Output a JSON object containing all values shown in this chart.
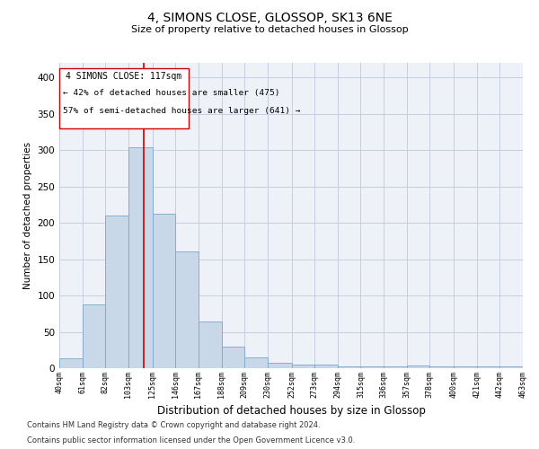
{
  "title": "4, SIMONS CLOSE, GLOSSOP, SK13 6NE",
  "subtitle": "Size of property relative to detached houses in Glossop",
  "xlabel": "Distribution of detached houses by size in Glossop",
  "ylabel": "Number of detached properties",
  "bar_color": "#c8d8e8",
  "bar_edge_color": "#7aa8c8",
  "grid_color": "#c8cce0",
  "background_color": "#eef2f8",
  "property_line_color": "#cc0000",
  "property_size": 117,
  "annotation_text_line1": "4 SIMONS CLOSE: 117sqm",
  "annotation_text_line2": "← 42% of detached houses are smaller (475)",
  "annotation_text_line3": "57% of semi-detached houses are larger (641) →",
  "footer_line1": "Contains HM Land Registry data © Crown copyright and database right 2024.",
  "footer_line2": "Contains public sector information licensed under the Open Government Licence v3.0.",
  "bins": [
    40,
    61,
    82,
    103,
    125,
    146,
    167,
    188,
    209,
    230,
    252,
    273,
    294,
    315,
    336,
    357,
    378,
    400,
    421,
    442,
    463
  ],
  "counts": [
    14,
    88,
    210,
    304,
    212,
    160,
    64,
    30,
    15,
    8,
    5,
    5,
    2,
    2,
    2,
    4,
    2,
    3,
    3,
    2
  ],
  "ylim": [
    0,
    420
  ],
  "yticks": [
    0,
    50,
    100,
    150,
    200,
    250,
    300,
    350,
    400
  ]
}
